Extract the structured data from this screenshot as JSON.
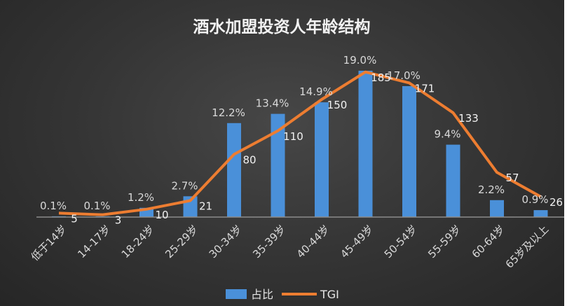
{
  "chart_data": {
    "type": "bar+line",
    "title": "酒水加盟投资人年龄结构",
    "categories": [
      "低于14岁",
      "14-17岁",
      "18-24岁",
      "25-29岁",
      "30-34岁",
      "35-39岁",
      "40-44岁",
      "45-49岁",
      "50-54岁",
      "55-59岁",
      "60-64岁",
      "65岁及以上"
    ],
    "series": [
      {
        "name": "占比",
        "type": "bar",
        "color": "#4a90d9",
        "values": [
          0.1,
          0.1,
          1.2,
          2.7,
          12.2,
          13.4,
          14.9,
          19.0,
          17.0,
          9.4,
          2.2,
          0.9
        ],
        "labels": [
          "0.1%",
          "0.1%",
          "1.2%",
          "2.7%",
          "12.2%",
          "13.4%",
          "14.9%",
          "19.0%",
          "17.0%",
          "9.4%",
          "2.2%",
          "0.9%"
        ]
      },
      {
        "name": "TGI",
        "type": "line",
        "color": "#ed7d31",
        "values": [
          5,
          3,
          10,
          21,
          80,
          110,
          150,
          185,
          171,
          133,
          57,
          26
        ],
        "labels": [
          "5",
          "3",
          "10",
          "21",
          "80",
          "110",
          "150",
          "185",
          "171",
          "133",
          "57",
          "26"
        ]
      }
    ],
    "legend_position": "bottom",
    "grid": false
  }
}
